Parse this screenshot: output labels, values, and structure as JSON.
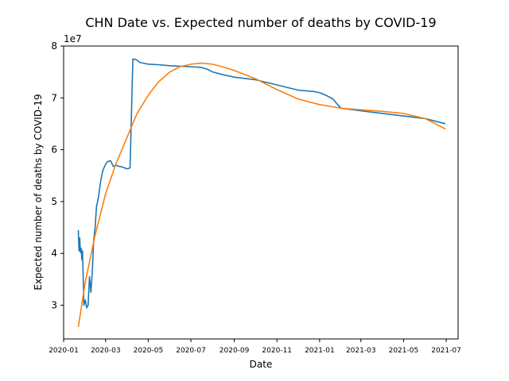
{
  "chart_data": {
    "type": "line",
    "title": "CHN Date vs. Expected number of deaths by COVID-19",
    "xlabel": "Date",
    "ylabel": "Expected number of deaths by COVID-19",
    "y_offset_label": "1e7",
    "y_scale": 10000000,
    "x_ticks": [
      "2020-01",
      "2020-03",
      "2020-05",
      "2020-07",
      "2020-09",
      "2020-11",
      "2021-01",
      "2021-03",
      "2021-05",
      "2021-07"
    ],
    "y_ticks": [
      "3",
      "4",
      "5",
      "6",
      "7",
      "8"
    ],
    "xlim": [
      "2020-01-01",
      "2021-07-18"
    ],
    "ylim": [
      23500000,
      80000000
    ],
    "grid": false,
    "colors": {
      "series_0": "#1f77b4",
      "series_1": "#ff7f0e"
    },
    "series": [
      {
        "x": [
          "2020-01-22",
          "2020-01-23",
          "2020-01-24",
          "2020-01-25",
          "2020-01-26",
          "2020-01-27",
          "2020-01-28",
          "2020-01-30",
          "2020-02-01",
          "2020-02-03",
          "2020-02-05",
          "2020-02-07",
          "2020-02-09",
          "2020-02-11",
          "2020-02-13",
          "2020-02-15",
          "2020-02-17",
          "2020-02-20",
          "2020-02-23",
          "2020-02-26",
          "2020-03-01",
          "2020-03-04",
          "2020-03-08",
          "2020-03-12",
          "2020-03-16",
          "2020-03-20",
          "2020-03-24",
          "2020-03-28",
          "2020-04-01",
          "2020-04-05",
          "2020-04-09",
          "2020-04-13",
          "2020-04-16",
          "2020-04-17",
          "2020-04-20",
          "2020-05-01",
          "2020-05-15",
          "2020-06-01",
          "2020-06-15",
          "2020-07-01",
          "2020-07-15",
          "2020-07-25",
          "2020-08-01",
          "2020-08-15",
          "2020-09-01",
          "2020-10-01",
          "2020-11-01",
          "2020-12-01",
          "2020-12-25",
          "2021-01-01",
          "2021-01-10",
          "2021-01-20",
          "2021-01-28",
          "2021-02-01",
          "2021-03-01",
          "2021-04-01",
          "2021-05-01",
          "2021-06-01",
          "2021-06-30"
        ],
        "values": [
          44500000,
          40500000,
          43000000,
          40200000,
          41000000,
          38800000,
          40500000,
          30000000,
          31000000,
          29500000,
          30000000,
          35500000,
          32500000,
          36500000,
          42500000,
          45000000,
          49000000,
          51000000,
          54000000,
          56000000,
          57200000,
          57700000,
          57900000,
          56800000,
          57000000,
          56800000,
          56700000,
          56500000,
          56300000,
          56500000,
          77500000,
          77400000,
          77200000,
          77000000,
          76800000,
          76500000,
          76400000,
          76200000,
          76100000,
          76000000,
          75900000,
          75500000,
          75000000,
          74500000,
          74000000,
          73500000,
          72500000,
          71500000,
          71200000,
          71000000,
          70500000,
          69800000,
          68500000,
          68000000,
          67500000,
          67000000,
          66500000,
          66000000,
          65000000
        ]
      },
      {
        "x": [
          "2020-01-22",
          "2020-02-01",
          "2020-02-15",
          "2020-03-01",
          "2020-03-15",
          "2020-04-01",
          "2020-04-15",
          "2020-05-01",
          "2020-05-15",
          "2020-06-01",
          "2020-06-15",
          "2020-07-01",
          "2020-07-15",
          "2020-08-01",
          "2020-08-15",
          "2020-09-01",
          "2020-10-01",
          "2020-11-01",
          "2020-12-01",
          "2021-01-01",
          "2021-02-01",
          "2021-03-01",
          "2021-04-01",
          "2021-05-01",
          "2021-06-01",
          "2021-06-30"
        ],
        "values": [
          25800000,
          34500000,
          43500000,
          51500000,
          57000000,
          62500000,
          67000000,
          70500000,
          73000000,
          75000000,
          76000000,
          76500000,
          76700000,
          76500000,
          76000000,
          75300000,
          73700000,
          71600000,
          69800000,
          68700000,
          68000000,
          67700000,
          67400000,
          67000000,
          66000000,
          64000000
        ]
      }
    ]
  }
}
